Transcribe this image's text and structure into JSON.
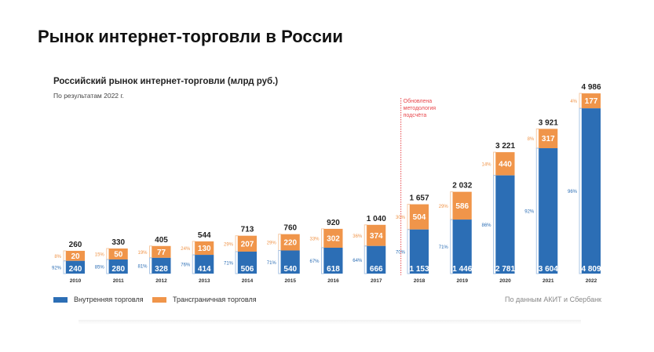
{
  "page_title": "Рынок интернет-торговли в России",
  "chart_data": {
    "type": "bar",
    "stacked": true,
    "title": "Российский рынок интернет-торговли (млрд руб.)",
    "subtitle": "По результатам 2022 г.",
    "categories": [
      "2010",
      "2011",
      "2012",
      "2013",
      "2014",
      "2015",
      "2016",
      "2017",
      "2018",
      "2019",
      "2020",
      "2021",
      "2022"
    ],
    "series": [
      {
        "name": "Внутренняя торговля",
        "color": "#2c6eb5",
        "values": [
          240,
          280,
          328,
          414,
          506,
          540,
          618,
          666,
          1153,
          1446,
          2781,
          3604,
          4809
        ],
        "shares": [
          "92%",
          "85%",
          "81%",
          "76%",
          "71%",
          "71%",
          "67%",
          "64%",
          "70%",
          "71%",
          "86%",
          "92%",
          "96%"
        ]
      },
      {
        "name": "Трансграничная торговля",
        "color": "#f0954a",
        "values": [
          20,
          50,
          77,
          130,
          207,
          220,
          302,
          374,
          504,
          586,
          440,
          317,
          177
        ],
        "shares": [
          "8%",
          "15%",
          "19%",
          "24%",
          "29%",
          "29%",
          "33%",
          "36%",
          "30%",
          "29%",
          "14%",
          "8%",
          "4%"
        ]
      }
    ],
    "value_labels": {
      "domestic": [
        "240",
        "280",
        "328",
        "414",
        "506",
        "540",
        "618",
        "666",
        "1 153",
        "1 446",
        "2 781",
        "3 604",
        "4 809"
      ],
      "cross_border": [
        "20",
        "50",
        "77",
        "130",
        "207",
        "220",
        "302",
        "374",
        "504",
        "586",
        "440",
        "317",
        "177"
      ]
    },
    "totals": [
      260,
      330,
      405,
      544,
      713,
      760,
      920,
      1040,
      1657,
      2032,
      3221,
      3921,
      4986
    ],
    "total_labels": [
      "260",
      "330",
      "405",
      "544",
      "713",
      "760",
      "920",
      "1 040",
      "1 657",
      "2 032",
      "3 221",
      "3 921",
      "4 986"
    ],
    "annotation": {
      "after": "2017",
      "lines": [
        "Обновлена",
        "методология",
        "подсчёта"
      ],
      "color": "#e8474c"
    },
    "legend_placement": "bottom-left",
    "grid": false
  },
  "source": "По данным АКИТ и Сбербанк"
}
